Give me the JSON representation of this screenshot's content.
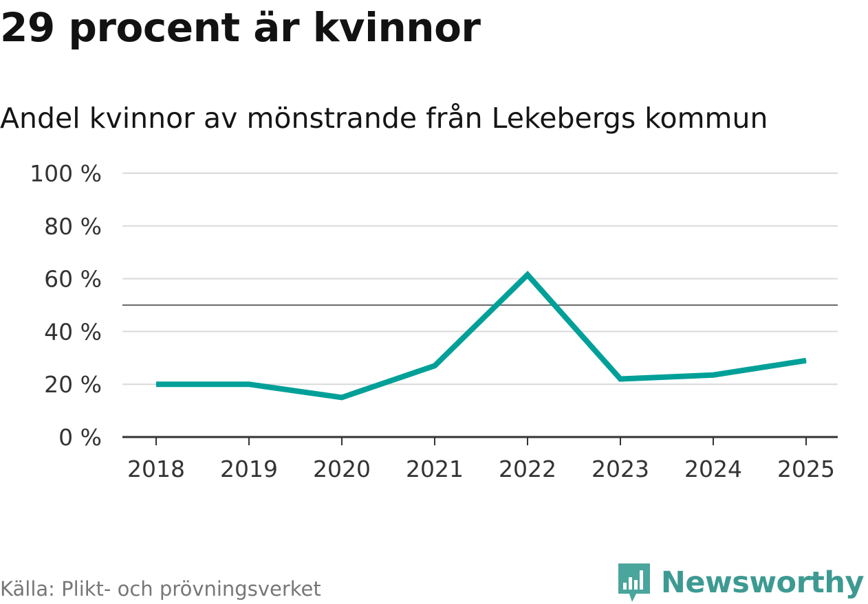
{
  "header": {
    "title": "29 procent är kvinnor",
    "subtitle": "Andel kvinnor av mönstrande från Lekebergs kommun"
  },
  "footer": {
    "source": "Källa: Plikt- och prövningsverket",
    "brand": "Newsworthy"
  },
  "colors": {
    "line": "#00a098",
    "grid": "#d9d9d9",
    "reference": "#6b6b6b",
    "axis": "#333333",
    "brand": "#3d9a92"
  },
  "chart_data": {
    "type": "line",
    "title": "29 procent är kvinnor",
    "subtitle": "Andel kvinnor av mönstrande från Lekebergs kommun",
    "xlabel": "",
    "ylabel": "",
    "categories": [
      "2018",
      "2019",
      "2020",
      "2021",
      "2022",
      "2023",
      "2024",
      "2025"
    ],
    "series": [
      {
        "name": "Andel kvinnor",
        "values": [
          20,
          20,
          15,
          27,
          61.5,
          22,
          23.5,
          29
        ]
      }
    ],
    "ylim": [
      0,
      100
    ],
    "yticks": [
      0,
      20,
      40,
      60,
      80,
      100
    ],
    "ytick_labels": [
      "0 %",
      "20 %",
      "40 %",
      "60 %",
      "80 %",
      "100 %"
    ],
    "reference_line": 50,
    "grid": true
  }
}
